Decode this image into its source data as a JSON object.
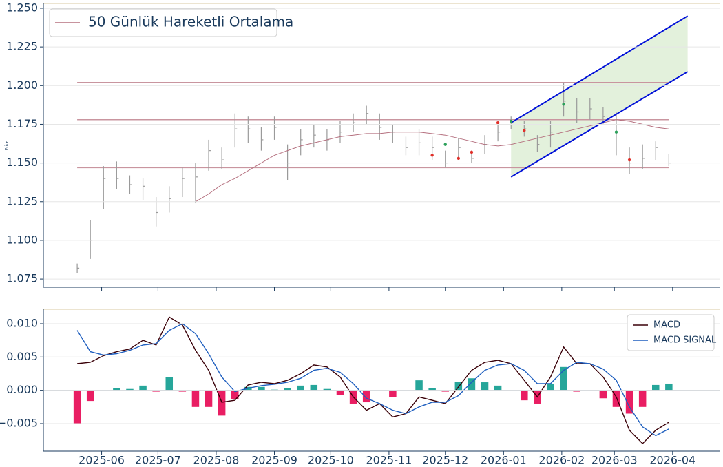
{
  "chart_data": [
    {
      "type": "ohlc",
      "ylabel": "Price",
      "x": [
        "2025-05-19",
        "2025-05-26",
        "2025-06-02",
        "2025-06-09",
        "2025-06-16",
        "2025-06-23",
        "2025-06-30",
        "2025-07-07",
        "2025-07-14",
        "2025-07-21",
        "2025-07-28",
        "2025-08-04",
        "2025-08-11",
        "2025-08-18",
        "2025-08-25",
        "2025-09-01",
        "2025-09-08",
        "2025-09-15",
        "2025-09-22",
        "2025-09-29",
        "2025-10-06",
        "2025-10-13",
        "2025-10-20",
        "2025-10-27",
        "2025-11-03",
        "2025-11-10",
        "2025-11-17",
        "2025-11-24",
        "2025-12-01",
        "2025-12-08",
        "2025-12-15",
        "2025-12-22",
        "2025-12-29",
        "2026-01-05",
        "2026-01-12",
        "2026-01-19",
        "2026-01-26",
        "2026-02-02",
        "2026-02-09",
        "2026-02-16",
        "2026-02-23",
        "2026-03-02",
        "2026-03-09",
        "2026-03-16",
        "2026-03-23",
        "2026-03-30"
      ],
      "high": [
        1.085,
        1.113,
        1.148,
        1.151,
        1.142,
        1.14,
        1.128,
        1.135,
        1.147,
        1.15,
        1.165,
        1.16,
        1.182,
        1.18,
        1.173,
        1.18,
        1.162,
        1.172,
        1.175,
        1.172,
        1.177,
        1.182,
        1.187,
        1.182,
        1.175,
        1.167,
        1.172,
        1.167,
        1.158,
        1.166,
        1.158,
        1.168,
        1.176,
        1.18,
        1.177,
        1.168,
        1.177,
        1.202,
        1.192,
        1.192,
        1.186,
        1.183,
        1.16,
        1.162,
        1.164,
        1.156
      ],
      "low": [
        1.079,
        1.088,
        1.12,
        1.133,
        1.13,
        1.126,
        1.109,
        1.118,
        1.128,
        1.124,
        1.145,
        1.146,
        1.16,
        1.163,
        1.158,
        1.165,
        1.139,
        1.155,
        1.16,
        1.158,
        1.163,
        1.17,
        1.175,
        1.165,
        1.163,
        1.155,
        1.155,
        1.152,
        1.147,
        1.153,
        1.15,
        1.156,
        1.164,
        1.172,
        1.167,
        1.157,
        1.16,
        1.18,
        1.176,
        1.178,
        1.175,
        1.155,
        1.143,
        1.146,
        1.152,
        1.148
      ],
      "close": [
        1.082,
        1.1,
        1.14,
        1.14,
        1.136,
        1.135,
        1.118,
        1.127,
        1.14,
        1.141,
        1.158,
        1.152,
        1.172,
        1.172,
        1.165,
        1.173,
        1.15,
        1.165,
        1.168,
        1.165,
        1.17,
        1.176,
        1.182,
        1.173,
        1.17,
        1.16,
        1.163,
        1.16,
        1.15,
        1.16,
        1.153,
        1.162,
        1.17,
        1.177,
        1.172,
        1.162,
        1.17,
        1.19,
        1.183,
        1.185,
        1.18,
        1.17,
        1.15,
        1.153,
        1.16,
        1.15
      ],
      "bar_color": "#9a9a9a",
      "series": [
        {
          "name": "50 Günlük Hareketli Ortalama",
          "color": "#b5707f",
          "values": [
            null,
            null,
            null,
            null,
            null,
            null,
            null,
            null,
            null,
            1.125,
            1.13,
            1.136,
            1.14,
            1.145,
            1.15,
            1.155,
            1.158,
            1.161,
            1.163,
            1.165,
            1.167,
            1.168,
            1.169,
            1.169,
            1.17,
            1.17,
            1.17,
            1.169,
            1.168,
            1.166,
            1.164,
            1.162,
            1.161,
            1.162,
            1.164,
            1.166,
            1.168,
            1.17,
            1.172,
            1.174,
            1.176,
            1.178,
            1.177,
            1.175,
            1.173,
            1.172
          ]
        }
      ],
      "levels": {
        "values": [
          1.147,
          1.178,
          1.202
        ],
        "color": "#c9959f"
      },
      "channel": {
        "x": [
          "2026-01-05",
          "2026-04-09"
        ],
        "upper": [
          1.176,
          1.245
        ],
        "lower": [
          1.141,
          1.209
        ],
        "color": "#0010d8",
        "fill": "#dcedd3"
      },
      "buy_signals": {
        "x": [
          "2025-12-01",
          "2026-01-05",
          "2026-02-02",
          "2026-03-02"
        ],
        "values": [
          1.162,
          1.177,
          1.188,
          1.17
        ],
        "color": "#2ca05a"
      },
      "sell_signals": {
        "x": [
          "2025-11-24",
          "2025-12-08",
          "2025-12-15",
          "2025-12-29",
          "2026-01-12",
          "2026-03-09"
        ],
        "values": [
          1.155,
          1.153,
          1.157,
          1.176,
          1.171,
          1.152
        ],
        "color": "#e0302a"
      },
      "xlim": [
        "2025-05-01",
        "2026-04-26"
      ],
      "ylim": [
        1.0697,
        1.2531
      ],
      "yticks": [
        1.075,
        {
          "value": 1.1,
          "label": "1.100"
        },
        1.125,
        {
          "value": 1.15,
          "label": "1.150"
        },
        1.175,
        {
          "value": 1.2,
          "label": "1.200"
        },
        1.225,
        {
          "value": 1.25,
          "label": "1.250"
        }
      ],
      "grid": true,
      "legend": "upper left"
    },
    {
      "type": "macd",
      "x": [
        "2025-05-19",
        "2025-05-26",
        "2025-06-02",
        "2025-06-09",
        "2025-06-16",
        "2025-06-23",
        "2025-06-30",
        "2025-07-07",
        "2025-07-14",
        "2025-07-21",
        "2025-07-28",
        "2025-08-04",
        "2025-08-11",
        "2025-08-18",
        "2025-08-25",
        "2025-09-01",
        "2025-09-08",
        "2025-09-15",
        "2025-09-22",
        "2025-09-29",
        "2025-10-06",
        "2025-10-13",
        "2025-10-20",
        "2025-10-27",
        "2025-11-03",
        "2025-11-10",
        "2025-11-17",
        "2025-11-24",
        "2025-12-01",
        "2025-12-08",
        "2025-12-15",
        "2025-12-22",
        "2025-12-29",
        "2026-01-05",
        "2026-01-12",
        "2026-01-19",
        "2026-01-26",
        "2026-02-02",
        "2026-02-09",
        "2026-02-16",
        "2026-02-23",
        "2026-03-02",
        "2026-03-09",
        "2026-03-16",
        "2026-03-23",
        "2026-03-30"
      ],
      "series": [
        {
          "name": "MACD",
          "color": "#3a0008",
          "values": [
            0.004,
            0.0042,
            0.0052,
            0.0058,
            0.0062,
            0.0075,
            0.0068,
            0.011,
            0.0098,
            0.006,
            0.003,
            -0.0018,
            -0.0015,
            0.0008,
            0.0012,
            0.001,
            0.0015,
            0.0025,
            0.0038,
            0.0035,
            0.002,
            -0.001,
            -0.003,
            -0.002,
            -0.004,
            -0.0035,
            -0.001,
            -0.0015,
            -0.002,
            0.0005,
            0.003,
            0.0042,
            0.0045,
            0.004,
            0.0015,
            -0.001,
            0.002,
            0.0065,
            0.004,
            0.004,
            0.002,
            -0.001,
            -0.006,
            -0.008,
            -0.006,
            -0.0048
          ]
        },
        {
          "name": "MACD SIGNAL",
          "color": "#1f5fbf",
          "values": [
            0.009,
            0.0058,
            0.0053,
            0.0055,
            0.006,
            0.0068,
            0.007,
            0.009,
            0.01,
            0.0085,
            0.0055,
            0.002,
            -0.0002,
            0.0003,
            0.0007,
            0.0009,
            0.0012,
            0.0018,
            0.003,
            0.0033,
            0.0027,
            0.001,
            -0.0012,
            -0.002,
            -0.003,
            -0.0035,
            -0.0025,
            -0.0018,
            -0.0018,
            -0.0008,
            0.0012,
            0.003,
            0.0038,
            0.004,
            0.003,
            0.001,
            0.001,
            0.003,
            0.0042,
            0.004,
            0.0032,
            0.0015,
            -0.0025,
            -0.0055,
            -0.0068,
            -0.0058
          ]
        }
      ],
      "histogram": {
        "values": [
          -0.005,
          -0.0016,
          -0.0001,
          0.0003,
          0.0002,
          0.0007,
          -0.0002,
          0.002,
          -0.0002,
          -0.0025,
          -0.0025,
          -0.0038,
          -0.0013,
          0.0005,
          0.0005,
          0.0001,
          0.0003,
          0.0007,
          0.0008,
          0.0002,
          -0.0007,
          -0.002,
          -0.0018,
          0,
          -0.001,
          0,
          0.0015,
          0.0003,
          -0.0002,
          0.0013,
          0.0018,
          0.0012,
          0.0007,
          0,
          -0.0015,
          -0.002,
          0.001,
          0.0035,
          -0.0002,
          0,
          -0.0012,
          -0.0025,
          -0.0035,
          -0.0025,
          0.0008,
          0.001
        ],
        "up_color": "#26a69a",
        "down_color": "#e91e63"
      },
      "zero_line_color": "#4a6a8a",
      "xlim": [
        "2025-05-01",
        "2026-04-26"
      ],
      "ylim": [
        -0.00914,
        0.01217
      ],
      "xticks": [
        {
          "value": "2025-06-01",
          "label": "2025-06"
        },
        {
          "value": "2025-07-01",
          "label": "2025-07"
        },
        {
          "value": "2025-08-01",
          "label": "2025-08"
        },
        {
          "value": "2025-09-01",
          "label": "2025-09"
        },
        {
          "value": "2025-10-01",
          "label": "2025-10"
        },
        {
          "value": "2025-11-01",
          "label": "2025-11"
        },
        {
          "value": "2025-12-01",
          "label": "2025-12"
        },
        {
          "value": "2026-01-01",
          "label": "2026-01"
        },
        {
          "value": "2026-02-01",
          "label": "2026-02"
        },
        {
          "value": "2026-03-01",
          "label": "2026-03"
        },
        {
          "value": "2026-04-01",
          "label": "2026-04"
        }
      ],
      "yticks": [
        {
          "value": -0.005,
          "label": "−0.005"
        },
        {
          "value": 0,
          "label": "0.000"
        },
        0.005,
        {
          "value": 0.01,
          "label": "0.010"
        }
      ],
      "grid": true,
      "legend": "upper right"
    }
  ]
}
